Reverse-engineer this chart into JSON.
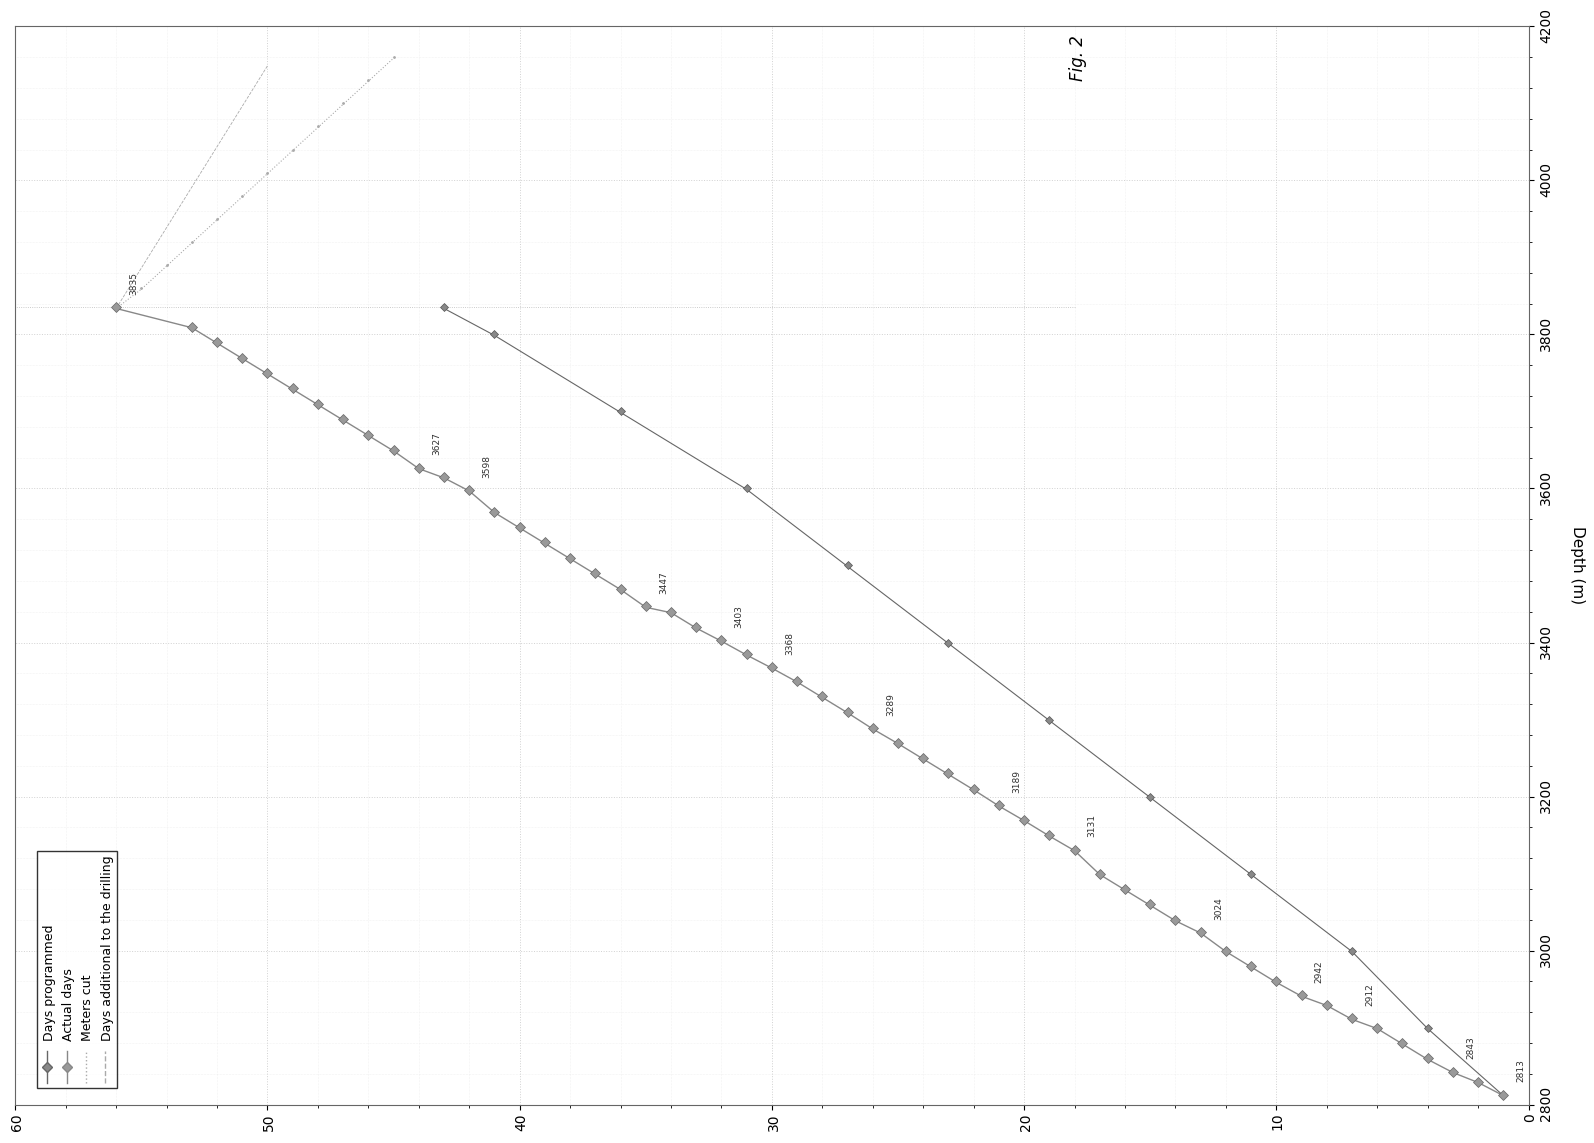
{
  "xlabel": "Depth (m)",
  "xlim": [
    2800,
    4200
  ],
  "ylim": [
    0,
    60
  ],
  "yticks": [
    0,
    10,
    20,
    30,
    40,
    50,
    60
  ],
  "xticks": [
    2800,
    3000,
    3200,
    3400,
    3600,
    3800,
    4000,
    4200
  ],
  "background_color": "#ffffff",
  "grid_color": "#cccccc",
  "minor_grid_color": "#e0e0e0",
  "legend_labels": [
    "Days programmed",
    "Actual days",
    "Meters cut",
    "Days additional to the drilling"
  ],
  "fig_label": "Fig. 2",
  "line_color": "#888888",
  "marker_color": "#888888",
  "dashed_color": "#aaaaaa",
  "main_line_depth": [
    2813,
    2830,
    2843,
    2860,
    2880,
    2900,
    2912,
    2930,
    2942,
    2960,
    2980,
    3000,
    3024,
    3040,
    3060,
    3080,
    3100,
    3131,
    3150,
    3170,
    3189,
    3210,
    3230,
    3250,
    3270,
    3289,
    3310,
    3330,
    3350,
    3368,
    3385,
    3403,
    3420,
    3440,
    3447,
    3470,
    3490,
    3510,
    3530,
    3550,
    3570,
    3598,
    3615,
    3627,
    3650,
    3670,
    3690,
    3710,
    3730,
    3750,
    3770,
    3790,
    3810,
    3835
  ],
  "main_line_days": [
    1,
    2,
    3,
    4,
    5,
    6,
    7,
    8,
    9,
    10,
    11,
    12,
    13,
    14,
    15,
    16,
    17,
    18,
    19,
    20,
    21,
    22,
    23,
    24,
    25,
    26,
    27,
    28,
    29,
    30,
    31,
    32,
    33,
    34,
    35,
    36,
    37,
    38,
    39,
    40,
    41,
    42,
    43,
    44,
    45,
    46,
    47,
    48,
    49,
    50,
    51,
    52,
    53,
    56
  ],
  "prog_line_depth": [
    2813,
    2900,
    3000,
    3100,
    3200,
    3300,
    3400,
    3500,
    3600,
    3700,
    3800,
    3835
  ],
  "prog_line_days": [
    1,
    4,
    7,
    11,
    15,
    19,
    23,
    27,
    31,
    36,
    41,
    43
  ],
  "dashed_x": [
    3835,
    3860,
    3890,
    3920,
    3950,
    3980,
    4010,
    4040,
    4070,
    4100,
    4130,
    4160
  ],
  "dashed_y": [
    56,
    55,
    54,
    53,
    52,
    51,
    50,
    49,
    48,
    47,
    46,
    45
  ],
  "annotations": [
    {
      "depth": 2813,
      "day": 1,
      "label": "2813"
    },
    {
      "depth": 2843,
      "day": 3,
      "label": "2843"
    },
    {
      "depth": 2912,
      "day": 7,
      "label": "2912"
    },
    {
      "depth": 2942,
      "day": 9,
      "label": "2942"
    },
    {
      "depth": 3024,
      "day": 13,
      "label": "3024"
    },
    {
      "depth": 3131,
      "day": 18,
      "label": "3131"
    },
    {
      "depth": 3189,
      "day": 21,
      "label": "3189"
    },
    {
      "depth": 3289,
      "day": 26,
      "label": "3289"
    },
    {
      "depth": 3368,
      "day": 30,
      "label": "3368"
    },
    {
      "depth": 3403,
      "day": 32,
      "label": "3403"
    },
    {
      "depth": 3447,
      "day": 35,
      "label": "3447"
    },
    {
      "depth": 3598,
      "day": 42,
      "label": "3598"
    },
    {
      "depth": 3627,
      "day": 44,
      "label": "3627"
    },
    {
      "depth": 3835,
      "day": 56,
      "label": "3835"
    }
  ]
}
